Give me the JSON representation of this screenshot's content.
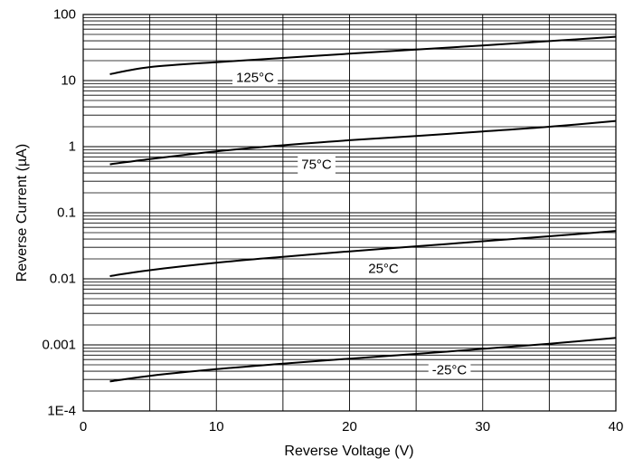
{
  "chart_data": {
    "type": "line",
    "xlabel": "Reverse Voltage (V)",
    "ylabel": "Reverse Current (µA)",
    "xlim": [
      0,
      40
    ],
    "ylim": [
      0.0001,
      100
    ],
    "yscale": "log",
    "grid": true,
    "x_ticks": [
      "0",
      "10",
      "20",
      "30",
      "40"
    ],
    "y_ticks": [
      "1E-4",
      "0.001",
      "0.01",
      "0.1",
      "1",
      "10",
      "100"
    ],
    "series": [
      {
        "name": "125°C",
        "x": [
          2,
          5,
          10,
          15,
          20,
          25,
          30,
          35,
          40
        ],
        "y": [
          12.5,
          16,
          19,
          22,
          25.5,
          29.5,
          34,
          39.5,
          46
        ]
      },
      {
        "name": "75°C",
        "x": [
          2,
          5,
          10,
          15,
          20,
          25,
          30,
          35,
          40
        ],
        "y": [
          0.54,
          0.65,
          0.85,
          1.05,
          1.25,
          1.45,
          1.7,
          2.0,
          2.45
        ]
      },
      {
        "name": "25°C",
        "x": [
          2,
          5,
          10,
          15,
          20,
          25,
          30,
          35,
          40
        ],
        "y": [
          0.011,
          0.0135,
          0.0175,
          0.0215,
          0.026,
          0.031,
          0.037,
          0.044,
          0.053
        ]
      },
      {
        "name": "-25°C",
        "x": [
          2,
          5,
          10,
          15,
          20,
          25,
          30,
          35,
          40
        ],
        "y": [
          0.00028,
          0.00034,
          0.00043,
          0.00052,
          0.00062,
          0.00073,
          0.00087,
          0.00104,
          0.00128
        ]
      }
    ]
  }
}
